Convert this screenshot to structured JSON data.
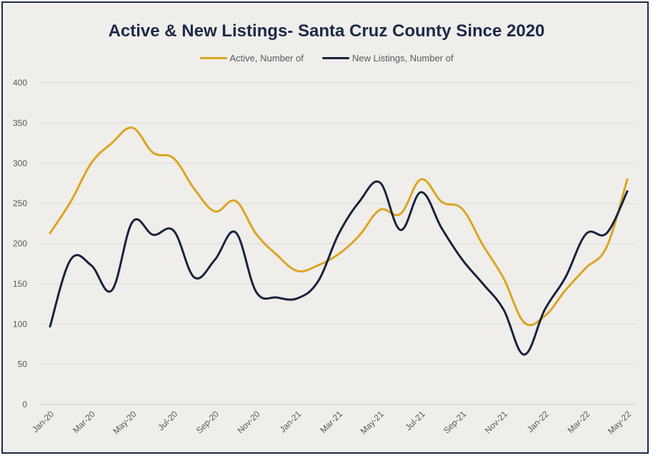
{
  "chart_data": {
    "type": "line",
    "title": "Active & New Listings- Santa Cruz County Since 2020",
    "xlabel": "",
    "ylabel": "",
    "ylim": [
      0,
      400
    ],
    "yticks": [
      0,
      50,
      100,
      150,
      200,
      250,
      300,
      350,
      400
    ],
    "grid": true,
    "legend_position": "top-center",
    "x": [
      "Jan-20",
      "Feb-20",
      "Mar-20",
      "Apr-20",
      "May-20",
      "Jun-20",
      "Jul-20",
      "Aug-20",
      "Sep-20",
      "Oct-20",
      "Nov-20",
      "Dec-20",
      "Jan-21",
      "Feb-21",
      "Mar-21",
      "Apr-21",
      "May-21",
      "Jun-21",
      "Jul-21",
      "Aug-21",
      "Sep-21",
      "Oct-21",
      "Nov-21",
      "Dec-21",
      "Jan-22",
      "Feb-22",
      "Mar-22",
      "Apr-22",
      "May-22"
    ],
    "xtick_labels": [
      "Jan-20",
      "Mar-20",
      "May-20",
      "Jul-20",
      "Sep-20",
      "Nov-20",
      "Jan-21",
      "Mar-21",
      "May-21",
      "Jul-21",
      "Sep-21",
      "Nov-21",
      "Jan-22",
      "Mar-22",
      "May-22"
    ],
    "series": [
      {
        "name": "Active, Number of",
        "color": "#daa520",
        "values": [
          213,
          252,
          300,
          325,
          344,
          313,
          306,
          268,
          240,
          253,
          212,
          186,
          166,
          173,
          187,
          210,
          242,
          237,
          280,
          252,
          243,
          198,
          157,
          102,
          110,
          142,
          170,
          196,
          280
        ]
      },
      {
        "name": "New Listings, Number of",
        "color": "#17233f",
        "values": [
          97,
          180,
          173,
          142,
          227,
          211,
          216,
          158,
          180,
          214,
          140,
          133,
          132,
          153,
          212,
          252,
          276,
          217,
          264,
          219,
          180,
          150,
          118,
          62,
          118,
          158,
          212,
          213,
          265
        ]
      }
    ]
  }
}
